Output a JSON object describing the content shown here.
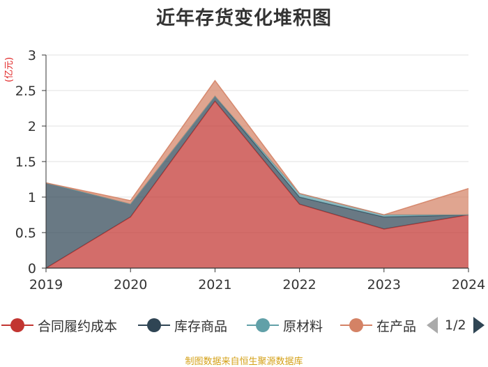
{
  "chart_data": {
    "type": "area",
    "stacked": true,
    "title": "近年存货变化堆积图",
    "ylabel": "(亿元)",
    "x": [
      "2019",
      "2020",
      "2021",
      "2022",
      "2023",
      "2024"
    ],
    "ylim": [
      0,
      3
    ],
    "yticks": [
      "0",
      "0.5",
      "1",
      "1.5",
      "2",
      "2.5",
      "3"
    ],
    "grid": true,
    "legend_position": "bottom",
    "series": [
      {
        "name": "合同履约成本",
        "color": "#c23531",
        "values": [
          0,
          0.72,
          2.35,
          0.9,
          0.55,
          0.75
        ]
      },
      {
        "name": "库存商品",
        "color": "#2f4554",
        "values": [
          1.2,
          0.18,
          0.07,
          0.1,
          0.17,
          0.0
        ]
      },
      {
        "name": "原材料",
        "color": "#61a0a8",
        "values": [
          0.0,
          0.0,
          0.0,
          0.05,
          0.03,
          0.0
        ]
      },
      {
        "name": "在产品",
        "color": "#d48265",
        "values": [
          0.0,
          0.05,
          0.22,
          0.0,
          0.0,
          0.37
        ]
      }
    ]
  },
  "legend": {
    "items": [
      "合同履约成本",
      "库存商品",
      "原材料",
      "在产品"
    ],
    "page_text": "1/2"
  },
  "source_text": "制图数据来自恒生聚源数据库"
}
